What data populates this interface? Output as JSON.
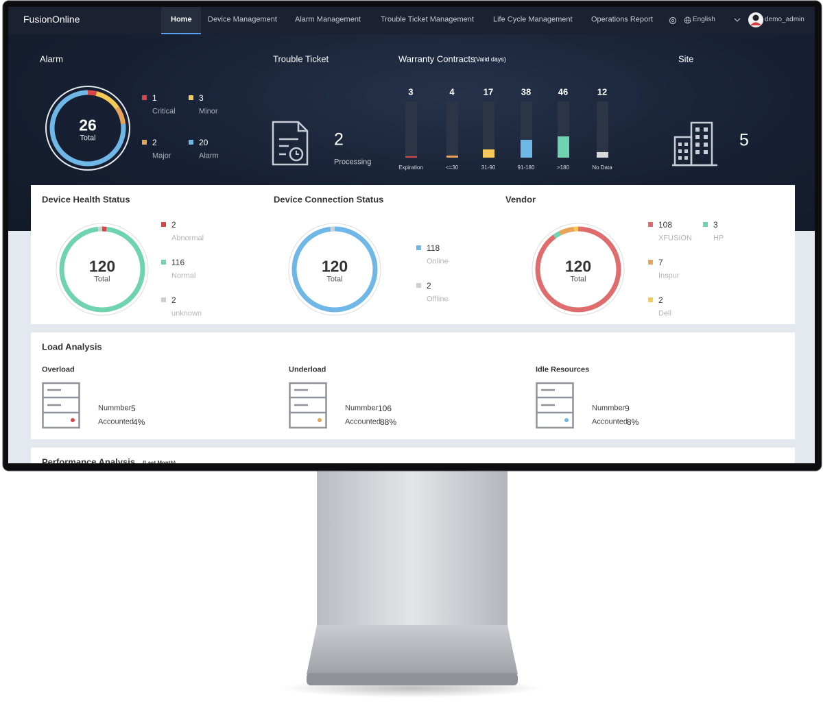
{
  "nav": {
    "brand": "FusionOnline",
    "items": [
      "Home",
      "Device Management",
      "Alarm Management",
      "Trouble Ticket Management",
      "Life Cycle Management",
      "Operations Report"
    ],
    "language": "English",
    "user": "demo_admin"
  },
  "alarm": {
    "title": "Alarm",
    "total": 26,
    "total_label": "Total",
    "items": [
      {
        "value": 1,
        "label": "Critical",
        "color": "#d9464a"
      },
      {
        "value": 3,
        "label": "Minor",
        "color": "#f5c955"
      },
      {
        "value": 2,
        "label": "Major",
        "color": "#e8a55a"
      },
      {
        "value": 20,
        "label": "Alarm",
        "color": "#6eb7e6"
      }
    ]
  },
  "trouble_ticket": {
    "title": "Trouble Ticket",
    "value": 2,
    "label": "Processing"
  },
  "warranty": {
    "title": "Warranty Contracts",
    "subtitle": "(Valid days)",
    "bars": [
      {
        "value": 3,
        "label": "Expiration",
        "color": "#d9464a"
      },
      {
        "value": 4,
        "label": "<=30",
        "color": "#e8a55a"
      },
      {
        "value": 17,
        "label": "31-90",
        "color": "#f5c955"
      },
      {
        "value": 38,
        "label": "91-180",
        "color": "#6eb7e6"
      },
      {
        "value": 46,
        "label": ">180",
        "color": "#6fd3b0"
      },
      {
        "value": 12,
        "label": "No Data",
        "color": "#d9d9d9"
      }
    ]
  },
  "site": {
    "title": "Site",
    "value": 5
  },
  "device_health": {
    "title": "Device Health Status",
    "total": 120,
    "total_label": "Total",
    "items": [
      {
        "value": 2,
        "label": "Abnormal",
        "color": "#d9464a"
      },
      {
        "value": 116,
        "label": "Normal",
        "color": "#6fd3b0"
      },
      {
        "value": 2,
        "label": "unknown",
        "color": "#cfcfcf"
      }
    ]
  },
  "device_connection": {
    "title": "Device Connection Status",
    "total": 120,
    "total_label": "Total",
    "items": [
      {
        "value": 118,
        "label": "Online",
        "color": "#6eb7e6"
      },
      {
        "value": 2,
        "label": "Offline",
        "color": "#cfcfcf"
      }
    ]
  },
  "vendor": {
    "title": "Vendor",
    "total": 120,
    "total_label": "Total",
    "items": [
      {
        "value": 108,
        "label": "XFUSION",
        "color": "#e06d6d"
      },
      {
        "value": 3,
        "label": "HP",
        "color": "#6fd3b0"
      },
      {
        "value": 7,
        "label": "Inspur",
        "color": "#e8a55a"
      },
      {
        "value": 2,
        "label": "Dell",
        "color": "#f5c955"
      }
    ]
  },
  "load_analysis": {
    "title": "Load Analysis",
    "number_label": "Nummber",
    "accounted_label": "Accounted",
    "items": [
      {
        "title": "Overload",
        "number": 5,
        "accounted": "4%",
        "color": "#d9464a"
      },
      {
        "title": "Underload",
        "number": 106,
        "accounted": "88%",
        "color": "#e8a55a"
      },
      {
        "title": "Idle Resources",
        "number": 9,
        "accounted": "8%",
        "color": "#6eb7e6"
      }
    ]
  },
  "performance_analysis": {
    "title": "Performance Analysis",
    "subtitle": "(Last Month)"
  }
}
